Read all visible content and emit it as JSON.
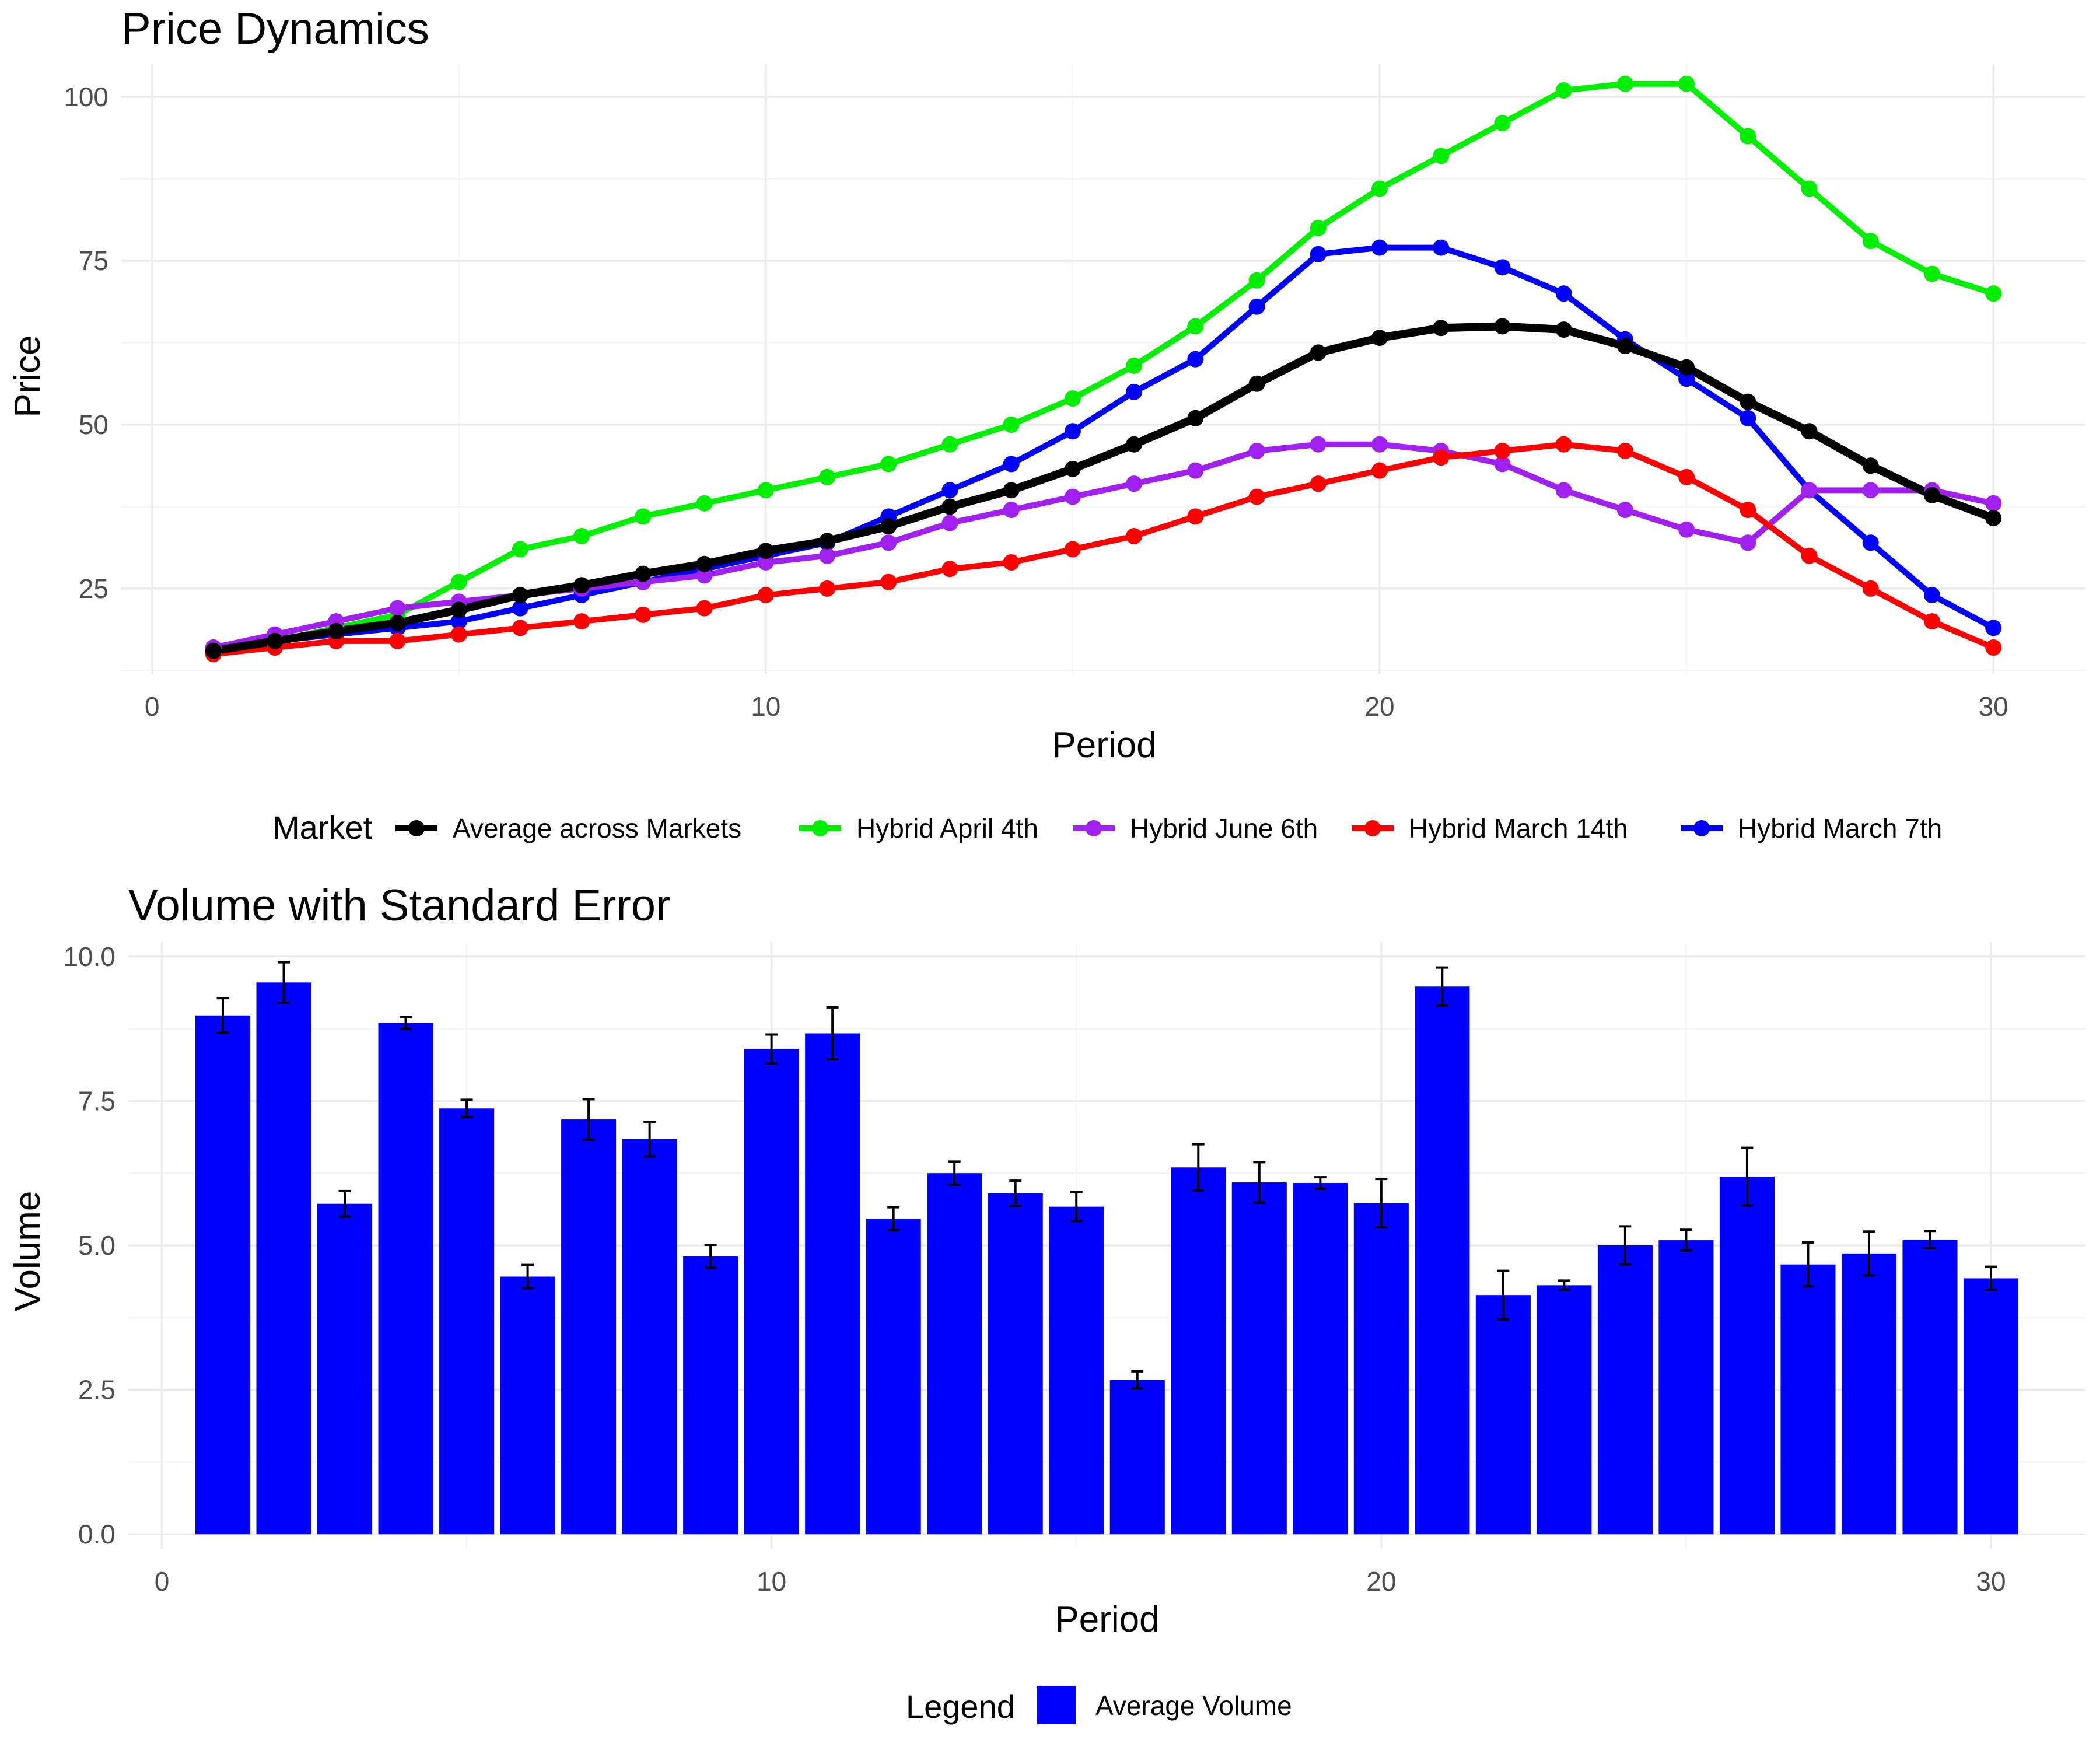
{
  "chart_data": [
    {
      "type": "line",
      "title": "Price Dynamics",
      "xlabel": "Period",
      "ylabel": "Price",
      "xlim": [
        -0.5,
        31.5
      ],
      "ylim": [
        12,
        105
      ],
      "xticks": [
        0,
        10,
        20,
        30
      ],
      "yticks": [
        25,
        50,
        75,
        100
      ],
      "grid": true,
      "legend": {
        "title": "Market",
        "position": "bottom"
      },
      "x": [
        1,
        2,
        3,
        4,
        5,
        6,
        7,
        8,
        9,
        10,
        11,
        12,
        13,
        14,
        15,
        16,
        17,
        18,
        19,
        20,
        21,
        22,
        23,
        24,
        25,
        26,
        27,
        28,
        29,
        30
      ],
      "series": [
        {
          "name": "Hybrid April 4th",
          "color": "#00ee00",
          "values": [
            15,
            17,
            19,
            21,
            26,
            31,
            33,
            36,
            38,
            40,
            42,
            44,
            47,
            50,
            54,
            59,
            65,
            72,
            80,
            86,
            91,
            96,
            101,
            102,
            102,
            94,
            86,
            78,
            73,
            70
          ]
        },
        {
          "name": "Hybrid March 7th",
          "color": "#0000ff",
          "values": [
            16,
            17,
            18,
            19,
            20,
            22,
            24,
            26,
            28,
            30,
            32,
            36,
            40,
            44,
            49,
            55,
            60,
            68,
            76,
            77,
            77,
            74,
            70,
            63,
            57,
            51,
            40,
            32,
            24,
            19
          ]
        },
        {
          "name": "Hybrid June 6th",
          "color": "#a020f0",
          "values": [
            16,
            18,
            20,
            22,
            23,
            24,
            25,
            26,
            27,
            29,
            30,
            32,
            35,
            37,
            39,
            41,
            43,
            46,
            47,
            47,
            46,
            44,
            40,
            37,
            34,
            32,
            40,
            40,
            40,
            38
          ]
        },
        {
          "name": "Hybrid March 14th",
          "color": "#ff0000",
          "values": [
            15,
            16,
            17,
            17,
            18,
            19,
            20,
            21,
            22,
            24,
            25,
            26,
            28,
            29,
            31,
            33,
            36,
            39,
            41,
            43,
            45,
            46,
            47,
            46,
            42,
            37,
            30,
            25,
            20,
            16
          ]
        },
        {
          "name": "Average across Markets",
          "color": "#000000",
          "values": [
            15.5,
            17,
            18.5,
            19.75,
            21.75,
            24,
            25.5,
            27.25,
            28.75,
            30.75,
            32.25,
            34.5,
            37.5,
            40,
            43.25,
            47,
            51,
            56.25,
            61,
            63.25,
            64.75,
            65,
            64.5,
            62,
            58.75,
            53.5,
            49,
            43.75,
            39.25,
            35.75
          ]
        }
      ]
    },
    {
      "type": "bar",
      "title": "Volume with Standard Error",
      "xlabel": "Period",
      "ylabel": "Volume",
      "xlim": [
        -0.55,
        31.55
      ],
      "ylim": [
        -0.25,
        10.25
      ],
      "xticks": [
        0,
        10,
        20,
        30
      ],
      "yticks": [
        0.0,
        2.5,
        5.0,
        7.5,
        10.0
      ],
      "ytick_labels": [
        "0.0",
        "2.5",
        "5.0",
        "7.5",
        "10.0"
      ],
      "grid": true,
      "legend": {
        "title": "Legend",
        "position": "bottom",
        "entries": [
          {
            "name": "Average Volume",
            "color": "#0000ff"
          }
        ]
      },
      "bar_color": "#0000ff",
      "x": [
        1,
        2,
        3,
        4,
        5,
        6,
        7,
        8,
        9,
        10,
        11,
        12,
        13,
        14,
        15,
        16,
        17,
        18,
        19,
        20,
        21,
        22,
        23,
        24,
        25,
        26,
        27,
        28,
        29,
        30
      ],
      "values": [
        8.98,
        9.55,
        5.72,
        8.85,
        7.37,
        4.46,
        7.18,
        6.84,
        4.81,
        8.4,
        8.67,
        5.46,
        6.25,
        5.9,
        5.67,
        2.67,
        6.35,
        6.09,
        6.08,
        5.73,
        9.48,
        4.14,
        4.31,
        5.0,
        5.09,
        6.19,
        4.67,
        4.86,
        5.1,
        4.43
      ],
      "errors": [
        0.3,
        0.35,
        0.22,
        0.1,
        0.15,
        0.2,
        0.35,
        0.3,
        0.2,
        0.25,
        0.45,
        0.2,
        0.2,
        0.22,
        0.25,
        0.15,
        0.4,
        0.35,
        0.1,
        0.42,
        0.33,
        0.42,
        0.08,
        0.33,
        0.18,
        0.5,
        0.38,
        0.38,
        0.15,
        0.2
      ]
    }
  ]
}
